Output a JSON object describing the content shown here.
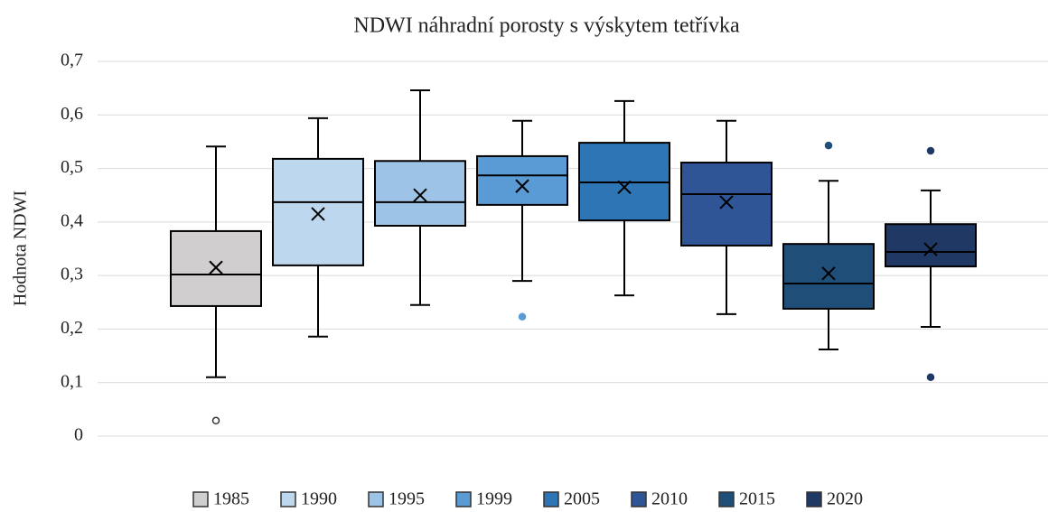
{
  "chart_data": {
    "type": "box",
    "title": "NDWI náhradní porosty s výskytem tetřívka",
    "ylabel": "Hodnota NDWI",
    "ylim": [
      0,
      0.7
    ],
    "yticks": [
      0,
      {
        "value": 0.1,
        "label": "0,1"
      },
      {
        "value": 0.2,
        "label": "0,2"
      },
      {
        "value": 0.3,
        "label": "0,3"
      },
      {
        "value": 0.4,
        "label": "0,4"
      },
      {
        "value": 0.5,
        "label": "0,5"
      },
      {
        "value": 0.6,
        "label": "0,6"
      },
      {
        "value": 0.7,
        "label": "0,7"
      }
    ],
    "grid": true,
    "legend": "bottom",
    "series": [
      {
        "name": "1985",
        "color": "#d0cece",
        "min": 0.11,
        "q1": 0.243,
        "median": 0.302,
        "q3": 0.383,
        "max": 0.541,
        "mean": 0.315,
        "outliers": [
          0.029
        ]
      },
      {
        "name": "1990",
        "color": "#bdd7ee",
        "min": 0.186,
        "q1": 0.319,
        "median": 0.437,
        "q3": 0.518,
        "max": 0.594,
        "mean": 0.415,
        "outliers": []
      },
      {
        "name": "1995",
        "color": "#9dc3e6",
        "min": 0.245,
        "q1": 0.393,
        "median": 0.437,
        "q3": 0.514,
        "max": 0.646,
        "mean": 0.45,
        "outliers": []
      },
      {
        "name": "1999",
        "color": "#5b9bd5",
        "min": 0.29,
        "q1": 0.432,
        "median": 0.487,
        "q3": 0.523,
        "max": 0.589,
        "mean": 0.467,
        "outliers": [
          0.223
        ]
      },
      {
        "name": "2005",
        "color": "#2e75b6",
        "min": 0.263,
        "q1": 0.403,
        "median": 0.474,
        "q3": 0.548,
        "max": 0.626,
        "mean": 0.465,
        "outliers": []
      },
      {
        "name": "2010",
        "color": "#2f5597",
        "min": 0.228,
        "q1": 0.356,
        "median": 0.452,
        "q3": 0.511,
        "max": 0.589,
        "mean": 0.437,
        "outliers": []
      },
      {
        "name": "2015",
        "color": "#1f4e79",
        "min": 0.162,
        "q1": 0.238,
        "median": 0.285,
        "q3": 0.359,
        "max": 0.477,
        "mean": 0.304,
        "outliers": [
          0.543
        ]
      },
      {
        "name": "2020",
        "color": "#203864",
        "min": 0.204,
        "q1": 0.317,
        "median": 0.344,
        "q3": 0.396,
        "max": 0.459,
        "mean": 0.349,
        "outliers": [
          0.533,
          0.11
        ]
      }
    ]
  }
}
